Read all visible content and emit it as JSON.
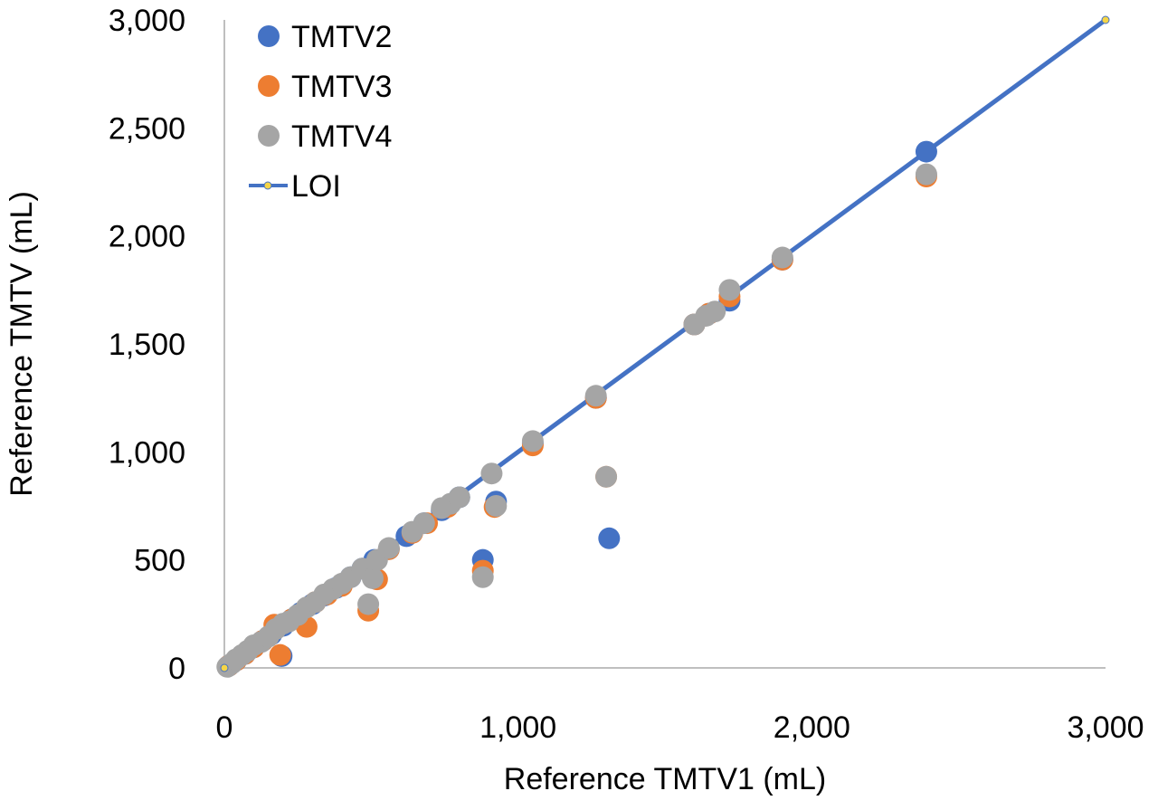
{
  "chart_data": {
    "type": "scatter",
    "xlabel": "Reference TMTV1 (mL)",
    "ylabel": "Reference TMTV (mL)",
    "xlim": [
      0,
      3000
    ],
    "ylim": [
      0,
      3000
    ],
    "x_ticks": [
      "0",
      "1,000",
      "2,000",
      "3,000"
    ],
    "y_ticks": [
      "0",
      "500",
      "1,000",
      "1,500",
      "2,000",
      "2,500",
      "3,000"
    ],
    "x_tick_values": [
      0,
      1000,
      2000,
      3000
    ],
    "y_tick_values": [
      0,
      500,
      1000,
      1500,
      2000,
      2500,
      3000
    ],
    "grid": false,
    "legend_position": "top-left",
    "series": [
      {
        "name": "TMTV2",
        "color": "#4472C4",
        "points": [
          [
            15,
            10
          ],
          [
            40,
            35
          ],
          [
            70,
            65
          ],
          [
            100,
            95
          ],
          [
            130,
            125
          ],
          [
            160,
            155
          ],
          [
            200,
            195
          ],
          [
            195,
            55
          ],
          [
            230,
            225
          ],
          [
            260,
            255
          ],
          [
            300,
            295
          ],
          [
            340,
            335
          ],
          [
            380,
            370
          ],
          [
            430,
            420
          ],
          [
            470,
            460
          ],
          [
            510,
            500
          ],
          [
            560,
            550
          ],
          [
            620,
            610
          ],
          [
            680,
            670
          ],
          [
            740,
            730
          ],
          [
            800,
            790
          ],
          [
            880,
            500
          ],
          [
            925,
            770
          ],
          [
            1050,
            1040
          ],
          [
            1265,
            1250
          ],
          [
            1310,
            600
          ],
          [
            1600,
            1590
          ],
          [
            1650,
            1640
          ],
          [
            1720,
            1700
          ],
          [
            1900,
            1890
          ],
          [
            2390,
            2390
          ]
        ]
      },
      {
        "name": "TMTV3",
        "color": "#ED7D31",
        "points": [
          [
            15,
            10
          ],
          [
            40,
            35
          ],
          [
            70,
            65
          ],
          [
            100,
            95
          ],
          [
            130,
            125
          ],
          [
            170,
            200
          ],
          [
            190,
            60
          ],
          [
            230,
            225
          ],
          [
            280,
            190
          ],
          [
            310,
            305
          ],
          [
            350,
            340
          ],
          [
            400,
            380
          ],
          [
            490,
            265
          ],
          [
            520,
            410
          ],
          [
            560,
            550
          ],
          [
            640,
            625
          ],
          [
            690,
            670
          ],
          [
            760,
            745
          ],
          [
            880,
            450
          ],
          [
            920,
            745
          ],
          [
            1050,
            1030
          ],
          [
            1265,
            1250
          ],
          [
            1300,
            885
          ],
          [
            1600,
            1590
          ],
          [
            1650,
            1640
          ],
          [
            1720,
            1720
          ],
          [
            1900,
            1890
          ],
          [
            2390,
            2275
          ]
        ]
      },
      {
        "name": "TMTV4",
        "color": "#A5A5A5",
        "points": [
          [
            10,
            5
          ],
          [
            25,
            20
          ],
          [
            40,
            40
          ],
          [
            60,
            60
          ],
          [
            80,
            80
          ],
          [
            100,
            105
          ],
          [
            125,
            120
          ],
          [
            150,
            145
          ],
          [
            175,
            180
          ],
          [
            200,
            205
          ],
          [
            220,
            215
          ],
          [
            250,
            245
          ],
          [
            280,
            280
          ],
          [
            310,
            305
          ],
          [
            340,
            340
          ],
          [
            370,
            365
          ],
          [
            400,
            390
          ],
          [
            430,
            420
          ],
          [
            470,
            460
          ],
          [
            490,
            295
          ],
          [
            505,
            415
          ],
          [
            520,
            500
          ],
          [
            560,
            555
          ],
          [
            640,
            630
          ],
          [
            680,
            670
          ],
          [
            740,
            740
          ],
          [
            770,
            760
          ],
          [
            800,
            790
          ],
          [
            880,
            420
          ],
          [
            910,
            900
          ],
          [
            925,
            750
          ],
          [
            1050,
            1050
          ],
          [
            1265,
            1260
          ],
          [
            1300,
            885
          ],
          [
            1600,
            1590
          ],
          [
            1640,
            1630
          ],
          [
            1670,
            1650
          ],
          [
            1720,
            1750
          ],
          [
            1900,
            1900
          ],
          [
            2390,
            2285
          ]
        ]
      },
      {
        "name": "LOI",
        "color": "#4472C4",
        "marker_color": "#F5D547",
        "line": [
          [
            0,
            0
          ],
          [
            3000,
            3000
          ]
        ]
      }
    ]
  }
}
